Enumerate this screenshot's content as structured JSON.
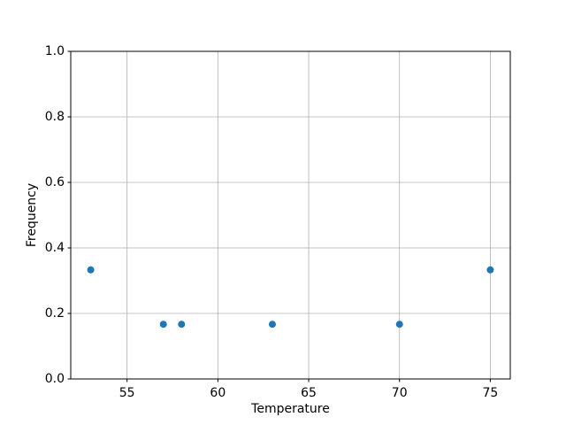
{
  "chart_data": {
    "type": "scatter",
    "title": "",
    "xlabel": "Temperature",
    "ylabel": "Frequency",
    "points": [
      {
        "x": 53,
        "y": 0.333
      },
      {
        "x": 57,
        "y": 0.167
      },
      {
        "x": 58,
        "y": 0.167
      },
      {
        "x": 63,
        "y": 0.167
      },
      {
        "x": 70,
        "y": 0.167
      },
      {
        "x": 75,
        "y": 0.333
      }
    ],
    "xlim": [
      51.9,
      76.1
    ],
    "ylim": [
      0.0,
      1.0
    ],
    "xticks": [
      55,
      60,
      65,
      70,
      75
    ],
    "xticklabels": [
      "55",
      "60",
      "65",
      "70",
      "75"
    ],
    "yticks": [
      0.0,
      0.2,
      0.4,
      0.6,
      0.8,
      1.0
    ],
    "yticklabels": [
      "0.0",
      "0.2",
      "0.4",
      "0.6",
      "0.8",
      "1.0"
    ],
    "grid": true,
    "legend": false,
    "marker_color": "#1f77b4",
    "marker_radius": 4,
    "grid_color": "#b0b0b0",
    "axis_color": "#000000",
    "background_color": "#ffffff"
  }
}
